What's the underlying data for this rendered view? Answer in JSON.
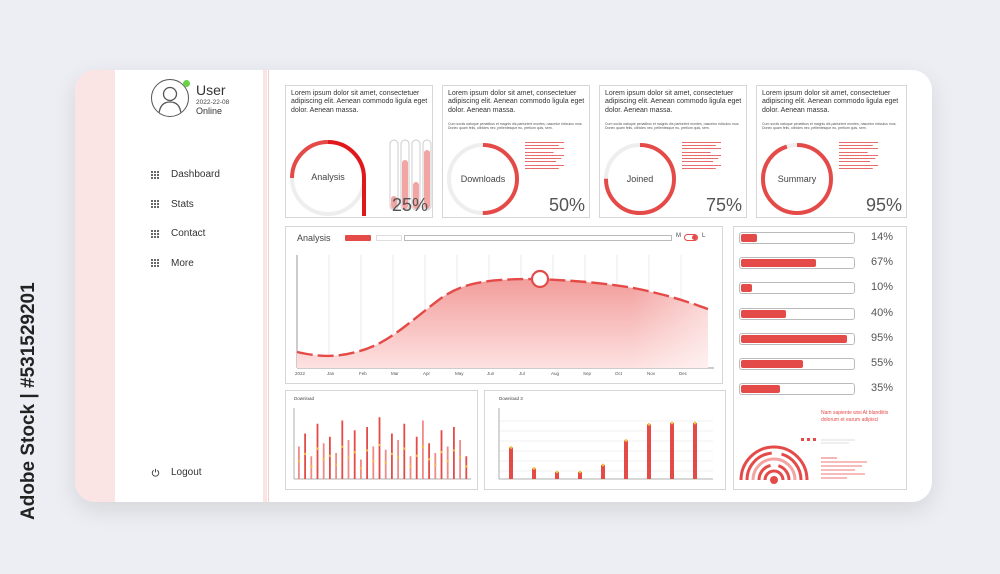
{
  "watermark": {
    "stock_id": "Adobe Stock | #531529201"
  },
  "sidebar": {
    "user": {
      "name": "User",
      "date": "2022-22-08",
      "status": "Online"
    },
    "items": [
      {
        "label": "Dashboard",
        "icon": "grid-icon"
      },
      {
        "label": "Stats",
        "icon": "grid-icon"
      },
      {
        "label": "Contact",
        "icon": "grid-icon"
      },
      {
        "label": "More",
        "icon": "grid-icon"
      }
    ],
    "logout_label": "Logout",
    "logout_icon": "power-icon"
  },
  "cards": [
    {
      "title": "Lorem ipsum dolor sit amet, consectetuer adipiscing elit. Aenean commodo ligula eget dolor. Aenean massa.",
      "ring_label": "Analysis",
      "percent": "25%",
      "value": 0.25
    },
    {
      "title": "Lorem ipsum dolor sit amet, consectetuer adipiscing elit. Aenean commodo ligula eget dolor. Aenean massa.",
      "subtitle": "Cum sociis natoque penatibus et magnis dis parturient montes, nascetur ridiculus mus. Donec quam felis, ultricies nec, pellentesque eu, pretium quis, sem.",
      "ring_label": "Downloads",
      "percent": "50%",
      "value": 0.5
    },
    {
      "title": "Lorem ipsum dolor sit amet, consectetuer adipiscing elit. Aenean commodo ligula eget dolor. Aenean massa.",
      "subtitle": "Cum sociis natoque penatibus et magnis dis parturient montes, nascetur ridiculus mus. Donec quam felis, ultricies nec, pellentesque eu, pretium quis, sem.",
      "ring_label": "Joined",
      "percent": "75%",
      "value": 0.75
    },
    {
      "title": "Lorem ipsum dolor sit amet, consectetuer adipiscing elit. Aenean commodo ligula eget dolor. Aenean massa.",
      "subtitle": "Cum sociis natoque penatibus et magnis dis parturient montes, nascetur ridiculus mus. Donec quam felis, ultricies nec, pellentesque eu, pretium quis, sem.",
      "ring_label": "Summary",
      "percent": "95%",
      "value": 0.95
    }
  ],
  "analysis": {
    "title": "Analysis",
    "toggle_label": "M",
    "toggle_label_2": "L",
    "months": [
      "2022",
      "Jan",
      "Feb",
      "Mar",
      "Apr",
      "May",
      "Jun",
      "Jul",
      "Aug",
      "Sep",
      "Oct",
      "Nov",
      "Dec"
    ]
  },
  "progress_bars": [
    {
      "label": "14%",
      "value": 0.14
    },
    {
      "label": "67%",
      "value": 0.67
    },
    {
      "label": "10%",
      "value": 0.1
    },
    {
      "label": "40%",
      "value": 0.4
    },
    {
      "label": "95%",
      "value": 0.95
    },
    {
      "label": "55%",
      "value": 0.55
    },
    {
      "label": "35%",
      "value": 0.35
    }
  ],
  "bottom_left": {
    "title": "Download"
  },
  "bottom_mid": {
    "title": "Download 3",
    "values": [
      0.45,
      0.15,
      0.1,
      0.1,
      0.2,
      0.55,
      0.78,
      0.8,
      0.8
    ]
  },
  "radial": {
    "heading": "Nam sapiente wisi At blandiitis dolorum et earum adipisci"
  },
  "colors": {
    "accent": "#e44b48",
    "accent_light": "#f7b5b3",
    "sidebar_stripe": "#fbe4e4"
  }
}
